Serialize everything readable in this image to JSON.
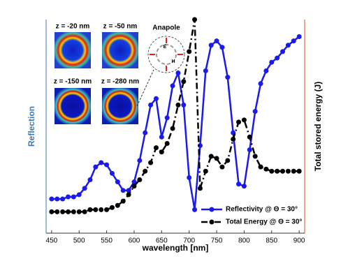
{
  "chart_data": {
    "type": "line",
    "xlabel": "wavelength [nm]",
    "ylabel": "Reflection",
    "y2label": "Total stored energy (J)",
    "x": [
      450,
      460,
      470,
      480,
      490,
      500,
      510,
      520,
      530,
      540,
      550,
      560,
      570,
      580,
      590,
      600,
      610,
      620,
      630,
      640,
      650,
      660,
      670,
      680,
      690,
      700,
      710,
      720,
      730,
      740,
      750,
      760,
      770,
      780,
      790,
      800,
      810,
      820,
      830,
      840,
      850,
      860,
      870,
      880,
      890,
      900
    ],
    "xlim": [
      440,
      910
    ],
    "xticks": [
      450,
      500,
      550,
      600,
      650,
      700,
      750,
      800,
      850,
      900
    ],
    "ylim": [
      0,
      1
    ],
    "y2lim": [
      0,
      1
    ],
    "series": [
      {
        "name": "Reflectivity @ Θ = 30°",
        "color": "#1a1aee",
        "dash": "solid",
        "values": [
          0.16,
          0.16,
          0.16,
          0.17,
          0.17,
          0.18,
          0.21,
          0.25,
          0.31,
          0.33,
          0.32,
          0.28,
          0.24,
          0.2,
          0.2,
          0.24,
          0.34,
          0.47,
          0.6,
          0.63,
          0.45,
          0.54,
          0.69,
          0.75,
          0.6,
          0.26,
          0.11,
          0.41,
          0.76,
          0.88,
          0.9,
          0.87,
          0.73,
          0.47,
          0.23,
          0.22,
          0.39,
          0.57,
          0.7,
          0.76,
          0.8,
          0.82,
          0.85,
          0.88,
          0.9,
          0.92
        ]
      },
      {
        "name": "Total Energy @ Θ = 30°",
        "color": "#000000",
        "dash": "dashdot",
        "axis": "y2",
        "values": [
          0.1,
          0.1,
          0.1,
          0.1,
          0.1,
          0.1,
          0.1,
          0.11,
          0.11,
          0.11,
          0.11,
          0.12,
          0.13,
          0.15,
          0.18,
          0.22,
          0.25,
          0.29,
          0.33,
          0.4,
          0.38,
          0.42,
          0.49,
          0.6,
          0.71,
          0.85,
          1.0,
          0.21,
          0.29,
          0.36,
          0.35,
          0.31,
          0.34,
          0.44,
          0.52,
          0.53,
          0.45,
          0.36,
          0.31,
          0.3,
          0.29,
          0.29,
          0.29,
          0.29,
          0.29,
          0.29
        ]
      }
    ],
    "annotations": {
      "maps": [
        "z = -20 nm",
        "z = -50 nm",
        "z = -150 nm",
        "z = -280 nm"
      ],
      "anapole": "Anapole",
      "e_label": "E",
      "h_label": "H"
    }
  }
}
